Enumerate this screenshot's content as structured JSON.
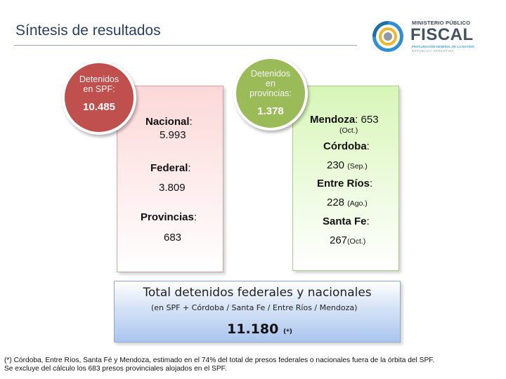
{
  "slide": {
    "title": "Síntesis de resultados"
  },
  "logo": {
    "line1": "MINISTERIO PÚBLICO",
    "line2": "FISCAL",
    "line3": "PROCURACIÓN GENERAL DE LA NACIÓN",
    "line4": "REPÚBLICA ARGENTINA"
  },
  "spf": {
    "label_line1": "Detenidos",
    "label_line2": "en SPF:",
    "value": "10.485",
    "nacional_label": "Nacional",
    "nacional_value": "5.993",
    "federal_label": "Federal",
    "federal_value": "3.809",
    "provincias_label": "Provincias",
    "provincias_value": "683"
  },
  "provinces": {
    "label_line1": "Detenidos",
    "label_line2": "en",
    "label_line3": "provincias:",
    "value": "1.378",
    "items": [
      {
        "name": "Mendoza",
        "value": "653",
        "note": "(Oct.)"
      },
      {
        "name": "Córdoba",
        "value": "230",
        "note": "(Sep.)"
      },
      {
        "name": "Entre Ríos",
        "value": "228",
        "note": "(Ago.)"
      },
      {
        "name": "Santa Fe",
        "value": "267",
        "note": "(Oct.)"
      }
    ]
  },
  "total": {
    "title": "Total detenidos federales y nacionales",
    "subtitle": "(en SPF + Córdoba / Santa Fe / Entre Ríos / Mendoza)",
    "value": "11.180",
    "mark": "(*)"
  },
  "footnote": {
    "line1": "(*) Córdoba, Entre Ríos, Santa Fé y Mendoza, estimado en el 74% del total de presos federales o nacionales fuera de la órbita del SPF.",
    "line2": "Se excluye del cálculo los 683 presos provinciales alojados en el SPF."
  },
  "colors": {
    "title": "#2a3f66",
    "red": "#c0504d",
    "green": "#9bbb59",
    "blue": "#a9c5ee"
  }
}
